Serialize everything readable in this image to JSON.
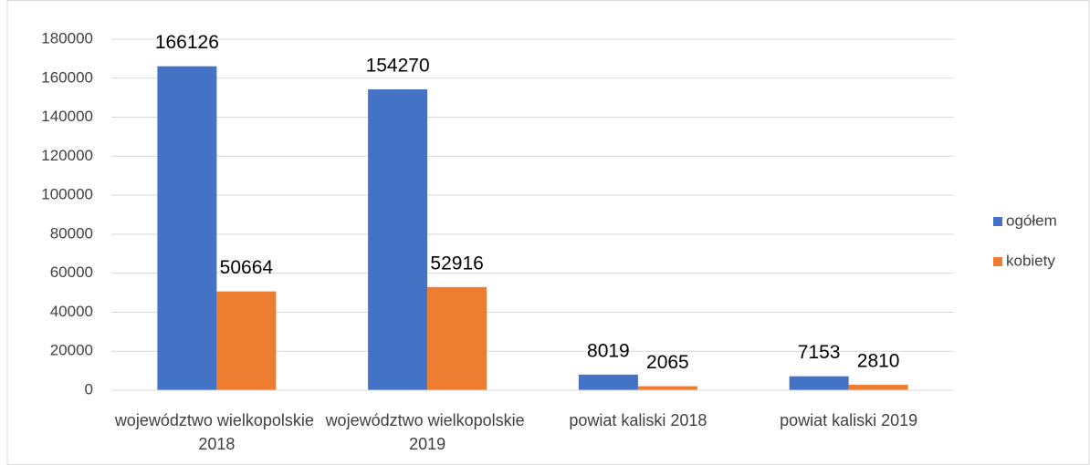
{
  "chart_data": {
    "type": "bar",
    "categories": [
      "województwo wielkopolskie 2018",
      "województwo wielkopolskie 2019",
      "powiat kaliski 2018",
      "powiat kaliski 2019"
    ],
    "series": [
      {
        "name": "ogółem",
        "color": "#4472c4",
        "values": [
          166126,
          154270,
          8019,
          7153
        ]
      },
      {
        "name": "kobiety",
        "color": "#ed7d31",
        "values": [
          50664,
          52916,
          2065,
          2810
        ]
      }
    ],
    "ylim": [
      0,
      180000
    ],
    "yticks": [
      0,
      20000,
      40000,
      60000,
      80000,
      100000,
      120000,
      140000,
      160000,
      180000
    ],
    "grid": true,
    "legend": "right"
  }
}
